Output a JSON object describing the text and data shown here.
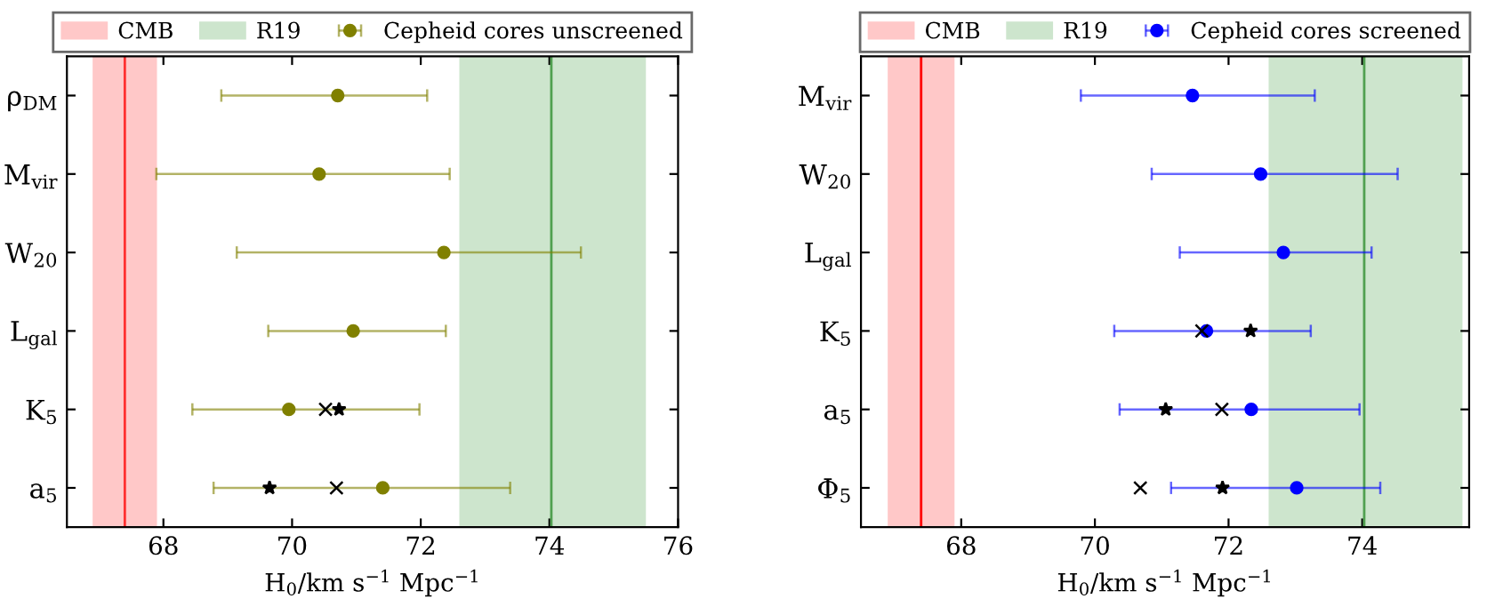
{
  "chart_data": [
    {
      "type": "scatter",
      "orientation": "horizontal",
      "xlabel": "H$_{0}$/km s$^{−1}$ Mpc$^{−1}$",
      "categories": [
        "ρ$_{DM}$",
        "M$_{vir}$",
        "W$_{20}$",
        "L$_{gal}$",
        "K$_{5}$",
        "a$_{5}$"
      ],
      "xlim": [
        66.5,
        76
      ],
      "xticks": [
        68,
        70,
        72,
        74,
        76
      ],
      "grid": false,
      "legend": "top",
      "bands": [
        {
          "axis": "x",
          "from": 66.9,
          "to": 67.9,
          "label": "CMB",
          "color": "#ffc8c8"
        },
        {
          "axis": "x",
          "from": 72.6,
          "to": 75.5,
          "label": "R19",
          "color": "#cde5cd"
        }
      ],
      "ref_lines": [
        {
          "axis": "x",
          "value": 67.4,
          "color": "#ff3030"
        },
        {
          "axis": "x",
          "value": 74.03,
          "color": "#50a050"
        }
      ],
      "series": [
        {
          "name": "Cepheid cores unscreened",
          "color": "#808000",
          "marker": "circle",
          "values": [
            70.71,
            70.42,
            72.36,
            70.95,
            69.95,
            71.41
          ],
          "errors": [
            [
              68.9,
              72.1
            ],
            [
              67.89,
              72.45
            ],
            [
              69.14,
              74.49
            ],
            [
              69.63,
              72.39
            ],
            [
              68.45,
              71.98
            ],
            [
              68.78,
              73.39
            ]
          ]
        },
        {
          "color": "#000000",
          "marker": "cross",
          "values": [
            null,
            null,
            null,
            null,
            70.52,
            70.69
          ]
        },
        {
          "color": "#000000",
          "marker": "star",
          "values": [
            null,
            null,
            null,
            null,
            70.73,
            69.65
          ]
        }
      ]
    },
    {
      "type": "scatter",
      "orientation": "horizontal",
      "xlabel": "H$_{0}$/km s$^{−1}$ Mpc$^{−1}$",
      "categories": [
        "M$_{vir}$",
        "W$_{20}$",
        "L$_{gal}$",
        "K$_{5}$",
        "a$_{5}$",
        "Φ$_{5}$"
      ],
      "xlim": [
        66.5,
        75.6
      ],
      "xticks": [
        68,
        70,
        72,
        74
      ],
      "grid": false,
      "legend": "top",
      "bands": [
        {
          "axis": "x",
          "from": 66.9,
          "to": 67.9,
          "label": "CMB",
          "color": "#ffc8c8"
        },
        {
          "axis": "x",
          "from": 72.6,
          "to": 75.5,
          "label": "R19",
          "color": "#cde5cd"
        }
      ],
      "ref_lines": [
        {
          "axis": "x",
          "value": 67.4,
          "color": "#ff0000"
        },
        {
          "axis": "x",
          "value": 74.03,
          "color": "#50a050"
        }
      ],
      "series": [
        {
          "name": "Cepheid cores screened",
          "color": "#0000ff",
          "marker": "circle",
          "values": [
            71.46,
            72.48,
            72.82,
            71.67,
            72.34,
            73.02
          ],
          "errors": [
            [
              69.79,
              73.29
            ],
            [
              70.85,
              74.53
            ],
            [
              71.27,
              74.14
            ],
            [
              70.29,
              73.23
            ],
            [
              70.37,
              73.96
            ],
            [
              71.14,
              74.27
            ]
          ]
        },
        {
          "color": "#000000",
          "marker": "cross",
          "values": [
            null,
            null,
            null,
            71.6,
            71.9,
            70.68
          ]
        },
        {
          "color": "#000000",
          "marker": "star",
          "values": [
            null,
            null,
            null,
            72.33,
            71.06,
            71.91
          ]
        }
      ]
    }
  ]
}
